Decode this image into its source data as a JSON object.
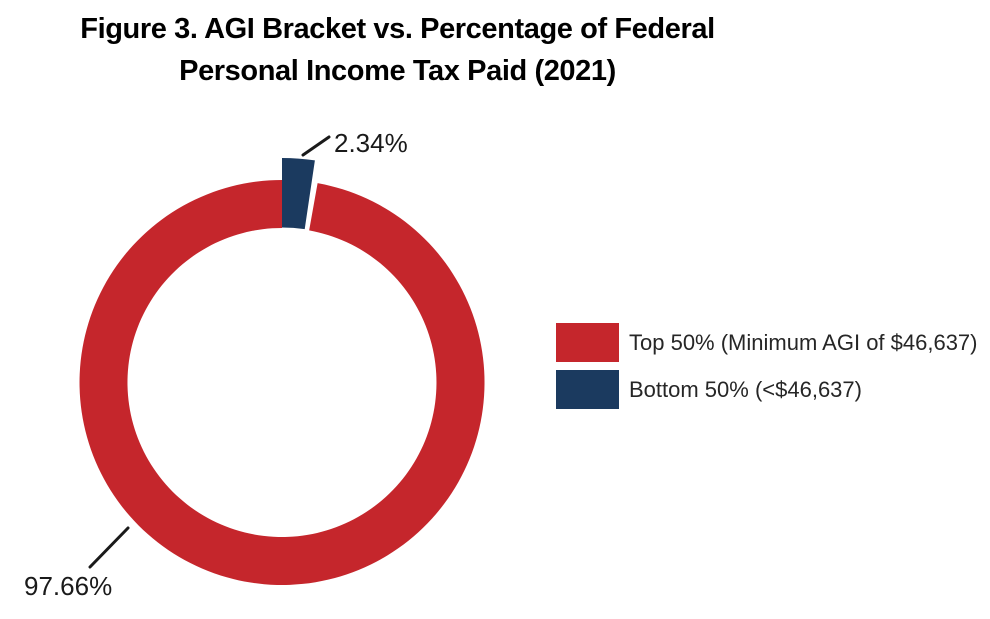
{
  "title": {
    "line1": "Figure 3. AGI Bracket vs. Percentage of Federal",
    "line2": "Personal Income Tax Paid (2021)"
  },
  "chart_data": {
    "type": "pie",
    "subtype": "donut",
    "title": "Figure 3. AGI Bracket vs. Percentage of Federal Personal Income Tax Paid (2021)",
    "units": "percent",
    "start_angle_deg": 0,
    "direction": "clockwise",
    "legend_position": "right",
    "series": [
      {
        "name": "Top 50% (Minimum AGI of $46,637)",
        "value": 97.66,
        "label": "97.66%",
        "color": "#C5262C"
      },
      {
        "name": "Bottom 50% (<$46,637)",
        "value": 2.34,
        "label": "2.34%",
        "color": "#1B3A5F"
      }
    ],
    "colors": {
      "top50_red": "#C5262C",
      "bottom50_navy": "#1B3A5F",
      "leader_line": "#1a1a1a"
    }
  }
}
